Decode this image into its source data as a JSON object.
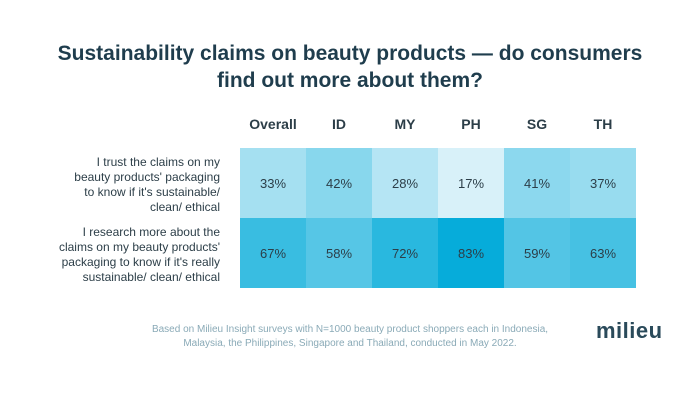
{
  "chart_data": {
    "type": "table",
    "title": [
      "Sustainability claims on beauty products — do consumers",
      "find out more about them?"
    ],
    "columns": [
      "Overall",
      "ID",
      "MY",
      "PH",
      "SG",
      "TH"
    ],
    "rows": [
      {
        "label": [
          "I trust the claims on my",
          "beauty products' packaging",
          "to know if it's sustainable/",
          "clean/ ethical"
        ],
        "values": [
          33,
          42,
          28,
          17,
          41,
          37
        ],
        "display": [
          "33%",
          "42%",
          "28%",
          "17%",
          "41%",
          "37%"
        ]
      },
      {
        "label": [
          "I research more about the",
          "claims on my beauty products'",
          "packaging to know if it's really",
          "sustainable/ clean/ ethical"
        ],
        "values": [
          67,
          58,
          72,
          83,
          59,
          63
        ],
        "display": [
          "67%",
          "58%",
          "72%",
          "83%",
          "59%",
          "63%"
        ]
      }
    ],
    "color_scale": {
      "low": "#eef8fc",
      "high": "#00aad9"
    }
  },
  "footnote": [
    "Based on Milieu Insight surveys with N=1000 beauty product shoppers each in Indonesia,",
    "Malaysia, the Philippines, Singapore and Thailand, conducted in May 2022."
  ],
  "brand": {
    "logo_text": "milieu"
  }
}
